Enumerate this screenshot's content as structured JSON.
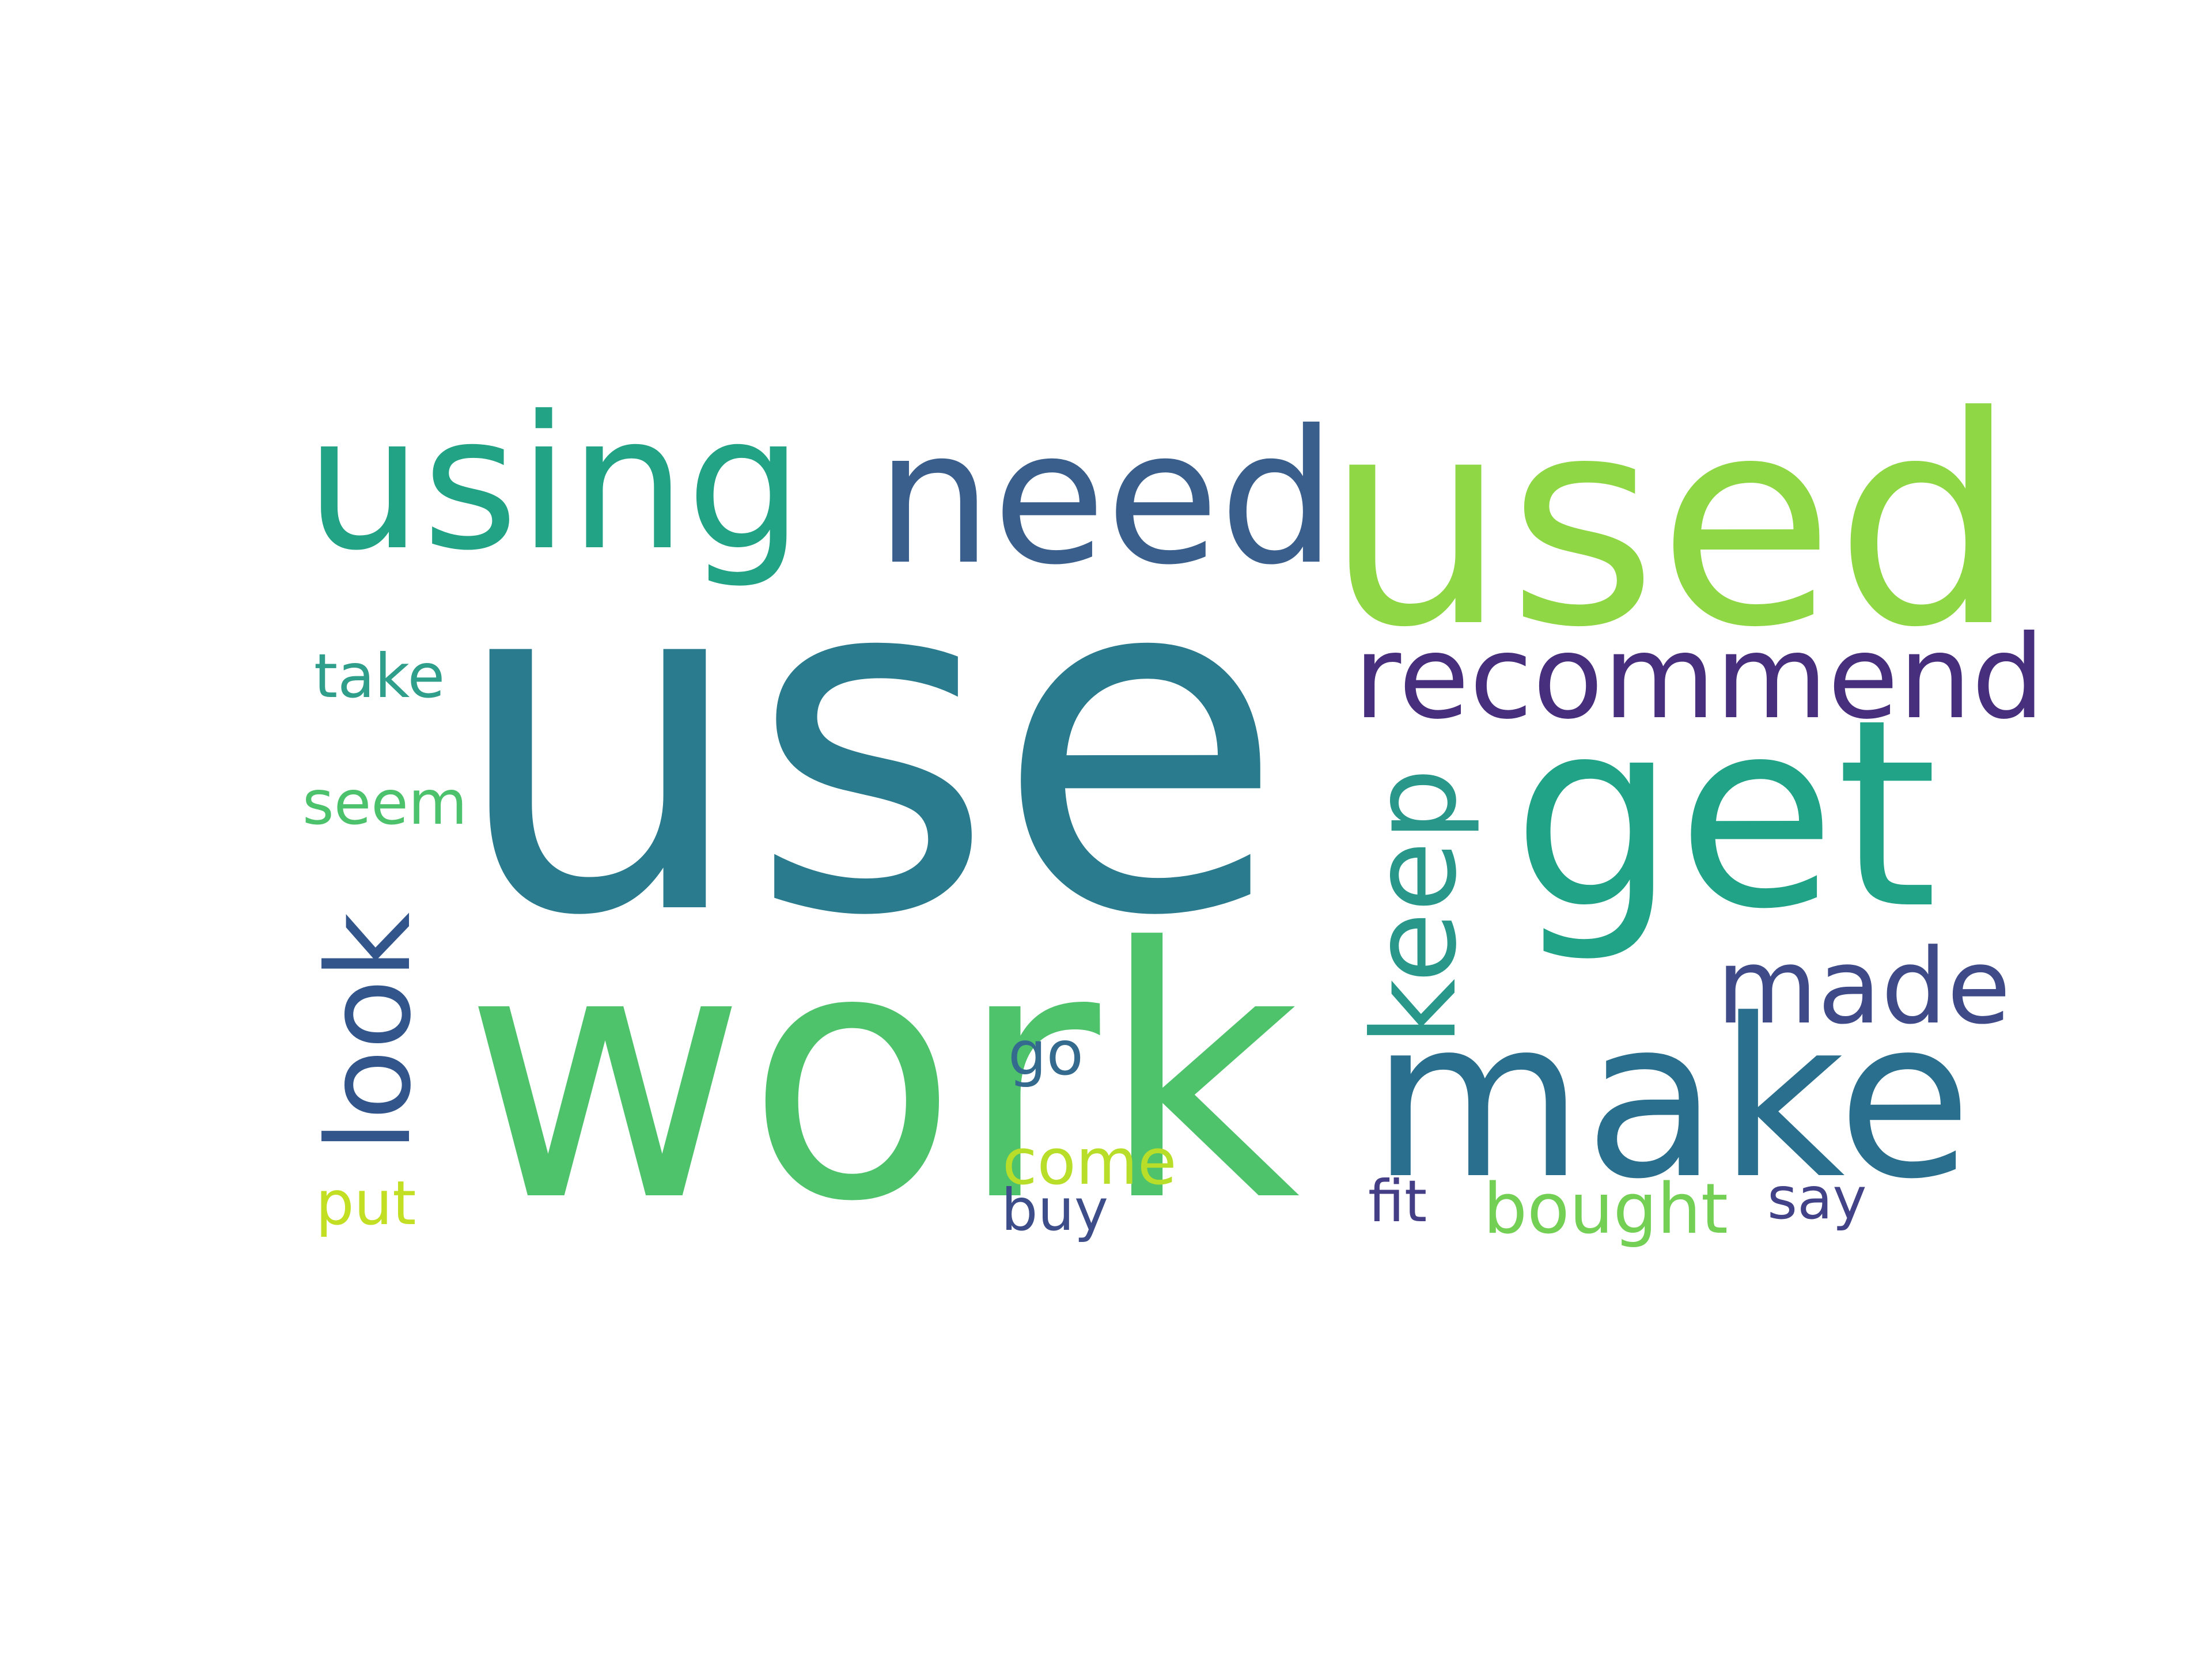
{
  "word_cloud": {
    "background": "#ffffff",
    "words": [
      {
        "text": "use",
        "color": "#2a7b8e",
        "orientation": "horizontal"
      },
      {
        "text": "work",
        "color": "#4ec36b",
        "orientation": "horizontal"
      },
      {
        "text": "used",
        "color": "#8fd744",
        "orientation": "horizontal"
      },
      {
        "text": "using",
        "color": "#22a385",
        "orientation": "horizontal"
      },
      {
        "text": "need",
        "color": "#3a5f8c",
        "orientation": "horizontal"
      },
      {
        "text": "get",
        "color": "#20a386",
        "orientation": "horizontal"
      },
      {
        "text": "make",
        "color": "#2b6f8e",
        "orientation": "horizontal"
      },
      {
        "text": "recommend",
        "color": "#482f7d",
        "orientation": "horizontal"
      },
      {
        "text": "keep",
        "color": "#29988b",
        "orientation": "vertical"
      },
      {
        "text": "look",
        "color": "#32568c",
        "orientation": "vertical"
      },
      {
        "text": "made",
        "color": "#3f4a89",
        "orientation": "horizontal"
      },
      {
        "text": "take",
        "color": "#2f9e8a",
        "orientation": "horizontal"
      },
      {
        "text": "seem",
        "color": "#4cc26c",
        "orientation": "horizontal"
      },
      {
        "text": "go",
        "color": "#336a8e",
        "orientation": "horizontal"
      },
      {
        "text": "come",
        "color": "#b8de29",
        "orientation": "horizontal"
      },
      {
        "text": "put",
        "color": "#c2df23",
        "orientation": "horizontal"
      },
      {
        "text": "buy",
        "color": "#3d4d8a",
        "orientation": "horizontal"
      },
      {
        "text": "fit",
        "color": "#433e85",
        "orientation": "horizontal"
      },
      {
        "text": "bought",
        "color": "#73d055",
        "orientation": "horizontal"
      },
      {
        "text": "say",
        "color": "#414287",
        "orientation": "horizontal"
      }
    ]
  }
}
